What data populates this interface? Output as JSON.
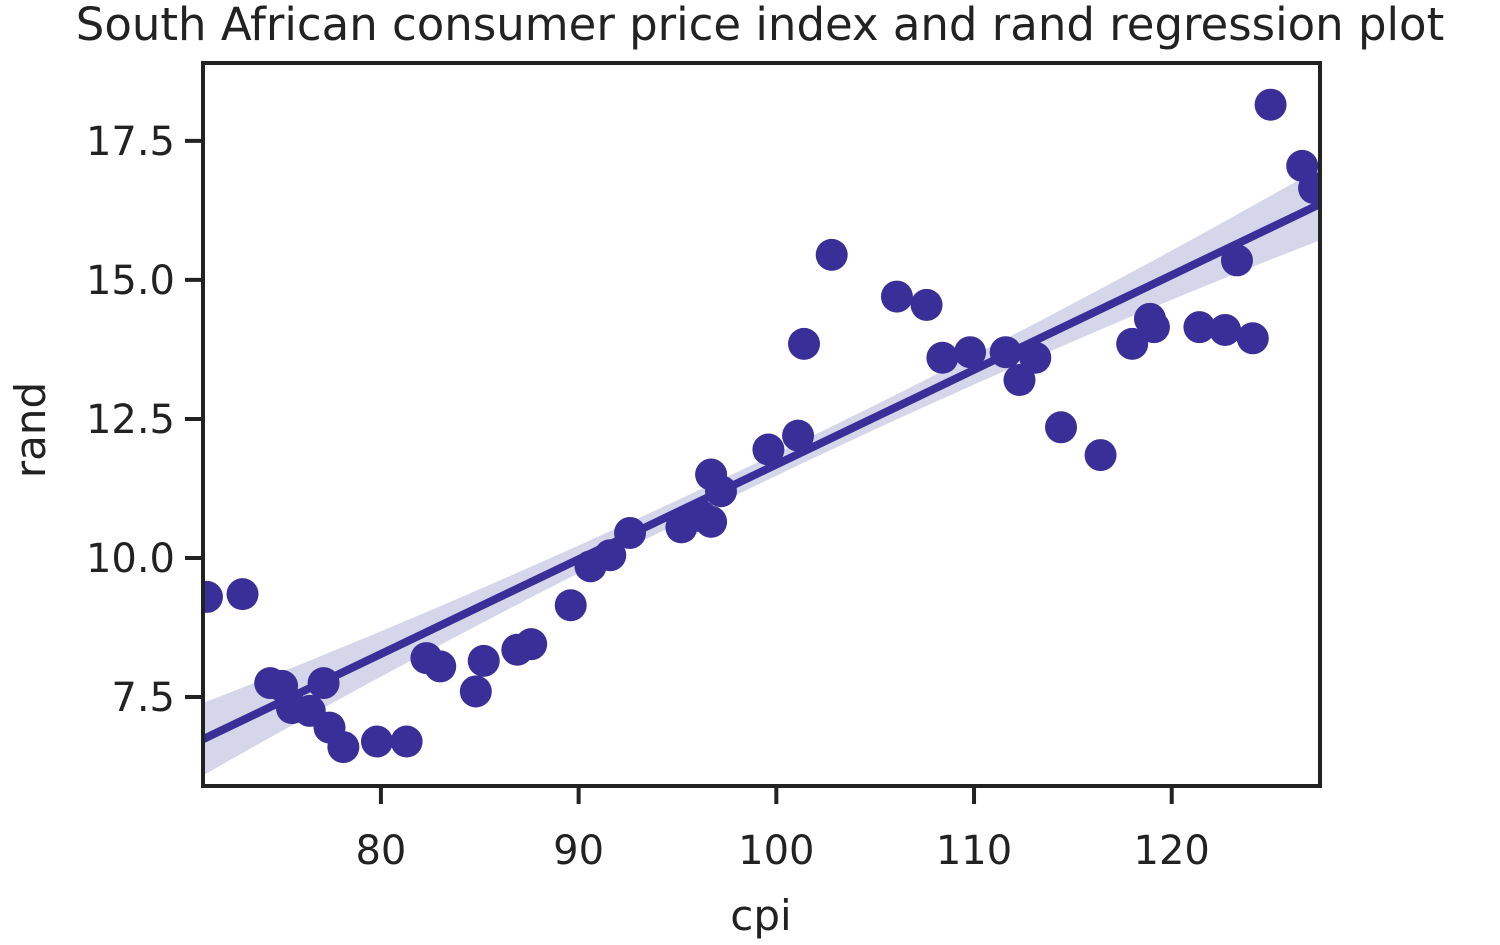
{
  "chart_data": {
    "type": "scatter",
    "title": "South African consumer price index and rand regression plot",
    "xlabel": "cpi",
    "ylabel": "rand",
    "xlim": [
      71,
      127.5
    ],
    "ylim": [
      5.9,
      18.9
    ],
    "x_ticks": [
      80,
      90,
      100,
      110,
      120
    ],
    "y_ticks": [
      7.5,
      10.0,
      12.5,
      15.0,
      17.5
    ],
    "grid": false,
    "colors": {
      "points": "#3a2f98",
      "line": "#3a2f98",
      "ci_band": "#cfcfe8",
      "frame": "#222222"
    },
    "regression": {
      "intercept": -5.35,
      "slope": 0.1703,
      "ci_half_width_at_ends": 0.65,
      "ci_half_width_center": 0.2
    },
    "points": [
      {
        "x": 71.2,
        "y": 9.3
      },
      {
        "x": 73.0,
        "y": 9.35
      },
      {
        "x": 74.4,
        "y": 7.75
      },
      {
        "x": 75.0,
        "y": 7.7
      },
      {
        "x": 75.5,
        "y": 7.3
      },
      {
        "x": 76.4,
        "y": 7.25
      },
      {
        "x": 77.1,
        "y": 7.75
      },
      {
        "x": 77.4,
        "y": 6.95
      },
      {
        "x": 78.1,
        "y": 6.6
      },
      {
        "x": 79.8,
        "y": 6.7
      },
      {
        "x": 81.3,
        "y": 6.7
      },
      {
        "x": 82.3,
        "y": 8.2
      },
      {
        "x": 83.0,
        "y": 8.05
      },
      {
        "x": 84.8,
        "y": 7.6
      },
      {
        "x": 85.2,
        "y": 8.15
      },
      {
        "x": 86.9,
        "y": 8.35
      },
      {
        "x": 87.6,
        "y": 8.45
      },
      {
        "x": 89.6,
        "y": 9.15
      },
      {
        "x": 90.6,
        "y": 9.85
      },
      {
        "x": 91.6,
        "y": 10.05
      },
      {
        "x": 92.6,
        "y": 10.45
      },
      {
        "x": 95.2,
        "y": 10.55
      },
      {
        "x": 96.2,
        "y": 10.75
      },
      {
        "x": 96.7,
        "y": 10.65
      },
      {
        "x": 96.7,
        "y": 11.5
      },
      {
        "x": 97.2,
        "y": 11.2
      },
      {
        "x": 99.6,
        "y": 11.95
      },
      {
        "x": 101.1,
        "y": 12.2
      },
      {
        "x": 101.4,
        "y": 13.85
      },
      {
        "x": 102.8,
        "y": 15.45
      },
      {
        "x": 106.1,
        "y": 14.7
      },
      {
        "x": 107.6,
        "y": 14.55
      },
      {
        "x": 108.4,
        "y": 13.6
      },
      {
        "x": 109.8,
        "y": 13.7
      },
      {
        "x": 111.6,
        "y": 13.7
      },
      {
        "x": 112.3,
        "y": 13.2
      },
      {
        "x": 113.1,
        "y": 13.6
      },
      {
        "x": 114.4,
        "y": 12.35
      },
      {
        "x": 116.4,
        "y": 11.85
      },
      {
        "x": 118.0,
        "y": 13.85
      },
      {
        "x": 118.9,
        "y": 14.3
      },
      {
        "x": 119.1,
        "y": 14.15
      },
      {
        "x": 121.4,
        "y": 14.15
      },
      {
        "x": 122.7,
        "y": 14.1
      },
      {
        "x": 123.3,
        "y": 15.35
      },
      {
        "x": 124.1,
        "y": 13.95
      },
      {
        "x": 125.0,
        "y": 18.15
      },
      {
        "x": 126.6,
        "y": 17.05
      },
      {
        "x": 127.2,
        "y": 16.65
      }
    ]
  }
}
